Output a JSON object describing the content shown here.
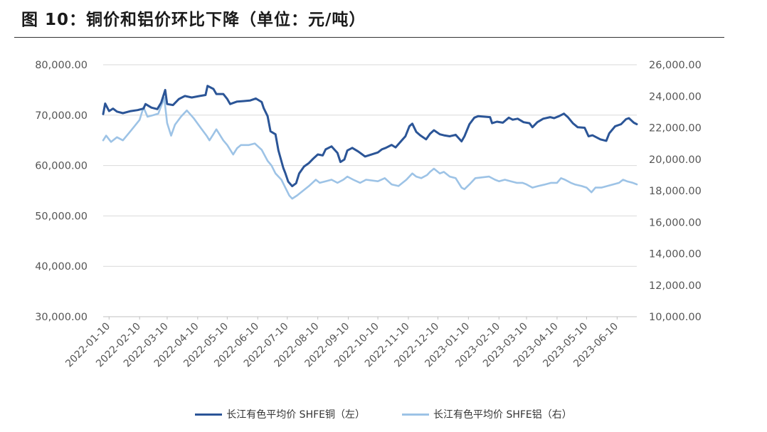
{
  "page": {
    "title": "图 10：铜价和铝价环比下降（单位：元/吨）"
  },
  "colors": {
    "copper": "#2b5597",
    "aluminum": "#9dc3e6",
    "grid": "#d9d9d9",
    "axis_text": "#555555"
  },
  "chart_data": {
    "type": "line",
    "title": "图 10：铜价和铝价环比下降（单位：元/吨）",
    "xlabel": "",
    "ylabel_left": "",
    "ylabel_right": "",
    "x_ticks": [
      "2022-01-10",
      "2022-02-10",
      "2022-03-10",
      "2022-04-10",
      "2022-05-10",
      "2022-06-10",
      "2022-07-10",
      "2022-08-10",
      "2022-09-10",
      "2022-10-10",
      "2022-11-10",
      "2022-12-10",
      "2023-01-10",
      "2023-02-10",
      "2023-03-10",
      "2023-04-10",
      "2023-05-10",
      "2023-06-10"
    ],
    "x_range": [
      "2022-01-04",
      "2023-06-30"
    ],
    "y_left": {
      "range": [
        30000,
        80000
      ],
      "ticks": [
        "30,000.00",
        "40,000.00",
        "50,000.00",
        "60,000.00",
        "70,000.00",
        "80,000.00"
      ]
    },
    "y_right": {
      "range": [
        10000,
        26000
      ],
      "ticks": [
        "10,000.00",
        "12,000.00",
        "14,000.00",
        "16,000.00",
        "18,000.00",
        "20,000.00",
        "22,000.00",
        "24,000.00",
        "26,000.00"
      ]
    },
    "grid": true,
    "legend_position": "bottom",
    "series": [
      {
        "name": "长江有色平均价 SHFE铜（左）",
        "axis": "left",
        "points": [
          [
            "2022-01-04",
            70200
          ],
          [
            "2022-01-06",
            72300
          ],
          [
            "2022-01-10",
            70800
          ],
          [
            "2022-01-14",
            71300
          ],
          [
            "2022-01-18",
            70700
          ],
          [
            "2022-01-24",
            70400
          ],
          [
            "2022-02-01",
            70800
          ],
          [
            "2022-02-08",
            71000
          ],
          [
            "2022-02-14",
            71300
          ],
          [
            "2022-02-16",
            72200
          ],
          [
            "2022-02-22",
            71500
          ],
          [
            "2022-02-28",
            71200
          ],
          [
            "2022-03-04",
            72500
          ],
          [
            "2022-03-08",
            75000
          ],
          [
            "2022-03-10",
            72200
          ],
          [
            "2022-03-16",
            72000
          ],
          [
            "2022-03-22",
            73200
          ],
          [
            "2022-03-28",
            73800
          ],
          [
            "2022-04-04",
            73500
          ],
          [
            "2022-04-12",
            73800
          ],
          [
            "2022-04-18",
            74000
          ],
          [
            "2022-04-20",
            75800
          ],
          [
            "2022-04-26",
            75200
          ],
          [
            "2022-04-29",
            74200
          ],
          [
            "2022-05-06",
            74200
          ],
          [
            "2022-05-10",
            73200
          ],
          [
            "2022-05-13",
            72200
          ],
          [
            "2022-05-20",
            72700
          ],
          [
            "2022-05-27",
            72800
          ],
          [
            "2022-06-02",
            72900
          ],
          [
            "2022-06-08",
            73300
          ],
          [
            "2022-06-14",
            72600
          ],
          [
            "2022-06-16",
            71400
          ],
          [
            "2022-06-20",
            69800
          ],
          [
            "2022-06-23",
            66800
          ],
          [
            "2022-06-28",
            66200
          ],
          [
            "2022-07-01",
            63000
          ],
          [
            "2022-07-06",
            59500
          ],
          [
            "2022-07-08",
            58500
          ],
          [
            "2022-07-11",
            56800
          ],
          [
            "2022-07-15",
            55900
          ],
          [
            "2022-07-19",
            56500
          ],
          [
            "2022-07-22",
            58400
          ],
          [
            "2022-07-27",
            59800
          ],
          [
            "2022-08-01",
            60500
          ],
          [
            "2022-08-05",
            61300
          ],
          [
            "2022-08-10",
            62200
          ],
          [
            "2022-08-15",
            62000
          ],
          [
            "2022-08-18",
            63200
          ],
          [
            "2022-08-24",
            63800
          ],
          [
            "2022-08-30",
            62500
          ],
          [
            "2022-09-02",
            60700
          ],
          [
            "2022-09-06",
            61200
          ],
          [
            "2022-09-09",
            63000
          ],
          [
            "2022-09-14",
            63500
          ],
          [
            "2022-09-20",
            62800
          ],
          [
            "2022-09-27",
            61800
          ],
          [
            "2022-10-10",
            62600
          ],
          [
            "2022-10-14",
            63200
          ],
          [
            "2022-10-18",
            63500
          ],
          [
            "2022-10-24",
            64100
          ],
          [
            "2022-10-28",
            63600
          ],
          [
            "2022-11-02",
            64700
          ],
          [
            "2022-11-07",
            65800
          ],
          [
            "2022-11-11",
            67800
          ],
          [
            "2022-11-14",
            68300
          ],
          [
            "2022-11-18",
            66700
          ],
          [
            "2022-11-22",
            66000
          ],
          [
            "2022-11-28",
            65200
          ],
          [
            "2022-12-02",
            66300
          ],
          [
            "2022-12-06",
            67000
          ],
          [
            "2022-12-12",
            66200
          ],
          [
            "2022-12-16",
            66000
          ],
          [
            "2022-12-22",
            65800
          ],
          [
            "2022-12-28",
            66100
          ],
          [
            "2023-01-03",
            64800
          ],
          [
            "2023-01-06",
            65800
          ],
          [
            "2023-01-11",
            68200
          ],
          [
            "2023-01-16",
            69500
          ],
          [
            "2023-01-20",
            69800
          ],
          [
            "2023-02-01",
            69600
          ],
          [
            "2023-02-03",
            68400
          ],
          [
            "2023-02-08",
            68700
          ],
          [
            "2023-02-14",
            68500
          ],
          [
            "2023-02-20",
            69500
          ],
          [
            "2023-02-24",
            69100
          ],
          [
            "2023-03-01",
            69300
          ],
          [
            "2023-03-07",
            68600
          ],
          [
            "2023-03-13",
            68400
          ],
          [
            "2023-03-16",
            67600
          ],
          [
            "2023-03-21",
            68600
          ],
          [
            "2023-03-27",
            69300
          ],
          [
            "2023-04-03",
            69600
          ],
          [
            "2023-04-07",
            69400
          ],
          [
            "2023-04-12",
            69800
          ],
          [
            "2023-04-17",
            70300
          ],
          [
            "2023-04-21",
            69600
          ],
          [
            "2023-04-26",
            68400
          ],
          [
            "2023-05-01",
            67600
          ],
          [
            "2023-05-08",
            67500
          ],
          [
            "2023-05-12",
            65800
          ],
          [
            "2023-05-16",
            66000
          ],
          [
            "2023-05-24",
            65200
          ],
          [
            "2023-05-30",
            64900
          ],
          [
            "2023-06-02",
            66400
          ],
          [
            "2023-06-08",
            67800
          ],
          [
            "2023-06-14",
            68200
          ],
          [
            "2023-06-19",
            69200
          ],
          [
            "2023-06-22",
            69400
          ],
          [
            "2023-06-27",
            68500
          ],
          [
            "2023-06-30",
            68200
          ]
        ]
      },
      {
        "name": "长江有色平均价 SHFE铝（右）",
        "axis": "right",
        "points": [
          [
            "2022-01-04",
            21200
          ],
          [
            "2022-01-07",
            21500
          ],
          [
            "2022-01-12",
            21100
          ],
          [
            "2022-01-18",
            21400
          ],
          [
            "2022-01-24",
            21200
          ],
          [
            "2022-02-01",
            21800
          ],
          [
            "2022-02-10",
            22500
          ],
          [
            "2022-02-14",
            23300
          ],
          [
            "2022-02-18",
            22700
          ],
          [
            "2022-02-24",
            22800
          ],
          [
            "2022-03-01",
            22900
          ],
          [
            "2022-03-07",
            23900
          ],
          [
            "2022-03-10",
            22300
          ],
          [
            "2022-03-14",
            21500
          ],
          [
            "2022-03-18",
            22200
          ],
          [
            "2022-03-24",
            22700
          ],
          [
            "2022-03-30",
            23100
          ],
          [
            "2022-04-06",
            22600
          ],
          [
            "2022-04-13",
            22000
          ],
          [
            "2022-04-19",
            21500
          ],
          [
            "2022-04-22",
            21200
          ],
          [
            "2022-04-26",
            21600
          ],
          [
            "2022-04-29",
            21900
          ],
          [
            "2022-05-06",
            21200
          ],
          [
            "2022-05-10",
            20900
          ],
          [
            "2022-05-16",
            20300
          ],
          [
            "2022-05-20",
            20700
          ],
          [
            "2022-05-24",
            20900
          ],
          [
            "2022-06-01",
            20900
          ],
          [
            "2022-06-07",
            21000
          ],
          [
            "2022-06-14",
            20600
          ],
          [
            "2022-06-20",
            19900
          ],
          [
            "2022-06-24",
            19600
          ],
          [
            "2022-06-28",
            19100
          ],
          [
            "2022-07-04",
            18700
          ],
          [
            "2022-07-08",
            18200
          ],
          [
            "2022-07-12",
            17700
          ],
          [
            "2022-07-15",
            17500
          ],
          [
            "2022-07-20",
            17700
          ],
          [
            "2022-07-26",
            18000
          ],
          [
            "2022-08-01",
            18300
          ],
          [
            "2022-08-08",
            18700
          ],
          [
            "2022-08-12",
            18500
          ],
          [
            "2022-08-18",
            18600
          ],
          [
            "2022-08-24",
            18700
          ],
          [
            "2022-08-30",
            18500
          ],
          [
            "2022-09-05",
            18700
          ],
          [
            "2022-09-09",
            18900
          ],
          [
            "2022-09-15",
            18700
          ],
          [
            "2022-09-22",
            18500
          ],
          [
            "2022-09-28",
            18700
          ],
          [
            "2022-10-10",
            18600
          ],
          [
            "2022-10-17",
            18800
          ],
          [
            "2022-10-24",
            18400
          ],
          [
            "2022-10-31",
            18300
          ],
          [
            "2022-11-04",
            18500
          ],
          [
            "2022-11-08",
            18700
          ],
          [
            "2022-11-14",
            19100
          ],
          [
            "2022-11-18",
            18900
          ],
          [
            "2022-11-23",
            18800
          ],
          [
            "2022-11-29",
            19000
          ],
          [
            "2022-12-02",
            19200
          ],
          [
            "2022-12-06",
            19400
          ],
          [
            "2022-12-12",
            19100
          ],
          [
            "2022-12-16",
            19200
          ],
          [
            "2022-12-22",
            18900
          ],
          [
            "2022-12-28",
            18800
          ],
          [
            "2023-01-03",
            18200
          ],
          [
            "2023-01-06",
            18100
          ],
          [
            "2023-01-11",
            18400
          ],
          [
            "2023-01-17",
            18800
          ],
          [
            "2023-01-31",
            18900
          ],
          [
            "2023-02-06",
            18700
          ],
          [
            "2023-02-10",
            18600
          ],
          [
            "2023-02-16",
            18700
          ],
          [
            "2023-02-22",
            18600
          ],
          [
            "2023-02-28",
            18500
          ],
          [
            "2023-03-06",
            18500
          ],
          [
            "2023-03-10",
            18400
          ],
          [
            "2023-03-16",
            18200
          ],
          [
            "2023-03-22",
            18300
          ],
          [
            "2023-03-29",
            18400
          ],
          [
            "2023-04-04",
            18500
          ],
          [
            "2023-04-10",
            18500
          ],
          [
            "2023-04-14",
            18800
          ],
          [
            "2023-04-18",
            18700
          ],
          [
            "2023-04-24",
            18500
          ],
          [
            "2023-04-28",
            18400
          ],
          [
            "2023-05-05",
            18300
          ],
          [
            "2023-05-10",
            18200
          ],
          [
            "2023-05-15",
            17900
          ],
          [
            "2023-05-19",
            18200
          ],
          [
            "2023-05-25",
            18200
          ],
          [
            "2023-05-31",
            18300
          ],
          [
            "2023-06-06",
            18400
          ],
          [
            "2023-06-12",
            18500
          ],
          [
            "2023-06-16",
            18700
          ],
          [
            "2023-06-20",
            18600
          ],
          [
            "2023-06-26",
            18500
          ],
          [
            "2023-06-30",
            18400
          ]
        ]
      }
    ]
  },
  "legend": {
    "copper": "长江有色平均价 SHFE铜（左）",
    "aluminum": "长江有色平均价 SHFE铝（右）"
  }
}
